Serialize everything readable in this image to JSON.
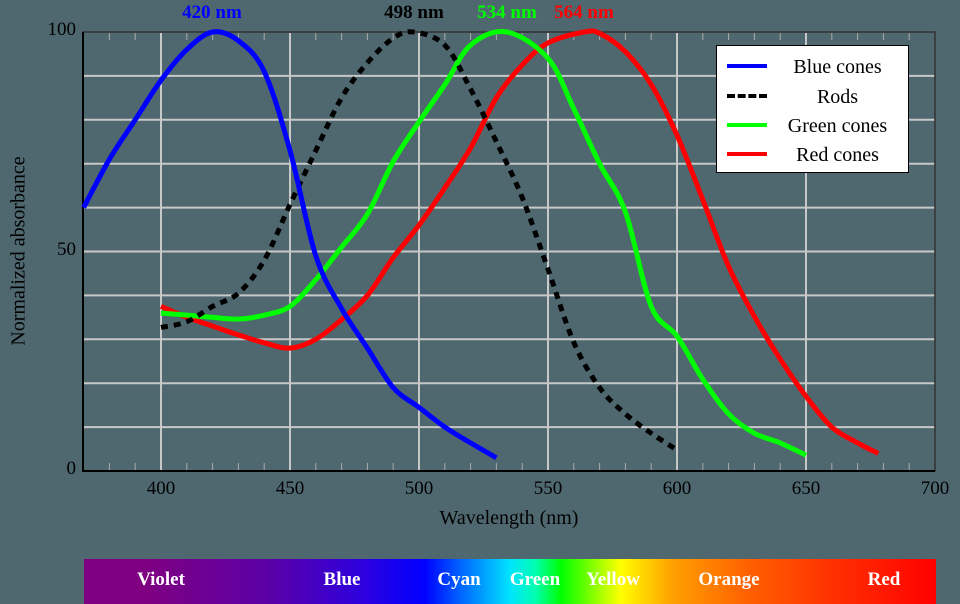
{
  "chart_data": {
    "type": "line",
    "title": "",
    "xlabel": "Wavelength (nm)",
    "ylabel": "Normalized absorbance",
    "xlim": [
      370,
      700
    ],
    "ylim": [
      0,
      100
    ],
    "x_ticks": [
      400,
      450,
      500,
      550,
      600,
      650,
      700
    ],
    "y_ticks": [
      0,
      50,
      100
    ],
    "grid": true,
    "legend_position": "upper right",
    "series": [
      {
        "name": "Blue cones",
        "color": "#0000ff",
        "style": "solid",
        "peak_label": "420 nm",
        "peak": 420,
        "x": [
          370,
          380,
          390,
          400,
          410,
          420,
          430,
          440,
          450,
          460,
          470,
          480,
          490,
          500,
          510,
          520,
          530
        ],
        "y": [
          60,
          71,
          80,
          89,
          96,
          100,
          98,
          91,
          73,
          49,
          37,
          28,
          19,
          14.5,
          10,
          6.4,
          3
        ]
      },
      {
        "name": "Rods",
        "color": "#000000",
        "style": "dashed",
        "peak_label": "498 nm",
        "peak": 498,
        "x": [
          400,
          410,
          420,
          430,
          440,
          450,
          460,
          470,
          480,
          490,
          498,
          510,
          520,
          530,
          540,
          550,
          560,
          570,
          580,
          590,
          600
        ],
        "y": [
          32.7,
          34,
          37.5,
          40.5,
          48,
          60.7,
          73,
          85,
          93,
          98.6,
          100,
          97,
          87,
          75,
          62.3,
          46,
          29.3,
          19,
          13,
          8.6,
          4.8
        ]
      },
      {
        "name": "Green cones",
        "color": "#00ff00",
        "style": "solid",
        "peak_label": "534 nm",
        "peak": 534,
        "x": [
          400,
          410,
          420,
          430,
          440,
          450,
          460,
          470,
          480,
          490,
          500,
          510,
          520,
          534,
          550,
          560,
          570,
          580,
          590,
          600,
          610,
          620,
          630,
          640,
          650
        ],
        "y": [
          36,
          35.5,
          35,
          34.6,
          35.5,
          37.5,
          43.6,
          51,
          58.5,
          70.5,
          79.5,
          88,
          97,
          100,
          94,
          82.5,
          70,
          59,
          37.5,
          30.7,
          20.9,
          13,
          8.6,
          6.4,
          3.6
        ]
      },
      {
        "name": "Red cones",
        "color": "#ff0000",
        "style": "solid",
        "peak_label": "564 nm",
        "peak": 564,
        "x": [
          400,
          410,
          420,
          430,
          440,
          450,
          460,
          470,
          480,
          490,
          500,
          510,
          520,
          530,
          540,
          550,
          564,
          570,
          580,
          590,
          600,
          610,
          620,
          630,
          640,
          650,
          660,
          670,
          678
        ],
        "y": [
          37.5,
          35,
          33,
          31,
          29.2,
          28,
          30,
          34.5,
          40,
          48.6,
          56,
          64.5,
          73.6,
          85,
          92.5,
          97.5,
          100,
          99.7,
          95.5,
          88,
          76.5,
          61.8,
          46.6,
          35.2,
          25.5,
          17,
          10,
          6.4,
          4
        ]
      }
    ],
    "spectrum_bands": [
      "Violet",
      "Blue",
      "Cyan",
      "Green",
      "Yellow",
      "Orange",
      "Red"
    ]
  },
  "labels": {
    "xlabel": "Wavelength (nm)",
    "ylabel": "Normalized absorbance",
    "ytick_0": "0",
    "ytick_50": "50",
    "ytick_100": "100",
    "xticks": [
      "400",
      "450",
      "500",
      "550",
      "600",
      "650",
      "700"
    ],
    "peaks": [
      "420 nm",
      "498 nm",
      "534 nm",
      "564 nm"
    ],
    "legend": [
      "Blue cones",
      "Rods",
      "Green cones",
      "Red cones"
    ],
    "bands": [
      "Violet",
      "Blue",
      "Cyan",
      "Green",
      "Yellow",
      "Orange",
      "Red"
    ]
  },
  "colors": {
    "background": "#4f6870",
    "grid": "#c8c8c8",
    "blue": "#0000ff",
    "rods": "#000000",
    "green": "#00ff00",
    "red": "#ff0000"
  }
}
